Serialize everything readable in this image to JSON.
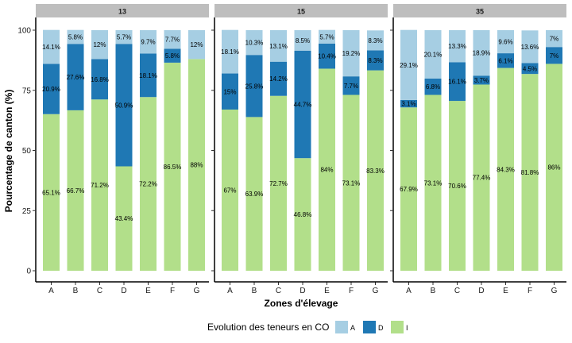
{
  "chart_data": {
    "type": "bar",
    "stacked": true,
    "percent": true,
    "xlabel": "Zones d'élevage",
    "ylabel": "Pourcentage de canton (%)",
    "ylim": [
      0,
      100
    ],
    "yticks": [
      0,
      25,
      50,
      75,
      100
    ],
    "grid": false,
    "legend": {
      "title": "Evolution des teneurs en CO",
      "position": "bottom",
      "entries": [
        {
          "key": "A",
          "label": "A",
          "color": "#a6cee3"
        },
        {
          "key": "D",
          "label": "D",
          "color": "#1f78b4"
        },
        {
          "key": "I",
          "label": "I",
          "color": "#b2df8a"
        }
      ]
    },
    "colors": {
      "A": "#a6cee3",
      "D": "#1f78b4",
      "I": "#b2df8a"
    },
    "categories": [
      "A",
      "B",
      "C",
      "D",
      "E",
      "F",
      "G"
    ],
    "facets": [
      {
        "strip": "13",
        "series": [
          {
            "name": "I",
            "values": [
              65.1,
              66.7,
              71.2,
              43.4,
              72.2,
              86.5,
              88
            ],
            "labels": [
              "65.1%",
              "66.7%",
              "71.2%",
              "43.4%",
              "72.2%",
              "86.5%",
              "88%"
            ]
          },
          {
            "name": "D",
            "values": [
              20.9,
              27.6,
              16.8,
              50.9,
              18.1,
              5.8,
              0
            ],
            "labels": [
              "20.9%",
              "27.6%",
              "16.8%",
              "50.9%",
              "18.1%",
              "5.8%",
              ""
            ]
          },
          {
            "name": "A",
            "values": [
              14.1,
              5.8,
              12,
              5.7,
              9.7,
              7.7,
              12
            ],
            "labels": [
              "14.1%",
              "5.8%",
              "12%",
              "5.7%",
              "9.7%",
              "7.7%",
              "12%"
            ]
          }
        ]
      },
      {
        "strip": "15",
        "series": [
          {
            "name": "I",
            "values": [
              67,
              63.9,
              72.7,
              46.8,
              84,
              73.1,
              83.3
            ],
            "labels": [
              "67%",
              "63.9%",
              "72.7%",
              "46.8%",
              "84%",
              "73.1%",
              "83.3%"
            ]
          },
          {
            "name": "D",
            "values": [
              15,
              25.8,
              14.2,
              44.7,
              10.4,
              7.7,
              8.3
            ],
            "labels": [
              "15%",
              "25.8%",
              "14.2%",
              "44.7%",
              "10.4%",
              "7.7%",
              "8.3%"
            ]
          },
          {
            "name": "A",
            "values": [
              18.1,
              10.3,
              13.1,
              8.5,
              5.7,
              19.2,
              8.3
            ],
            "labels": [
              "18.1%",
              "10.3%",
              "13.1%",
              "8.5%",
              "5.7%",
              "19.2%",
              "8.3%"
            ]
          }
        ]
      },
      {
        "strip": "35",
        "series": [
          {
            "name": "I",
            "values": [
              67.9,
              73.1,
              70.6,
              77.4,
              84.3,
              81.8,
              86
            ],
            "labels": [
              "67.9%",
              "73.1%",
              "70.6%",
              "77.4%",
              "84.3%",
              "81.8%",
              "86%"
            ]
          },
          {
            "name": "D",
            "values": [
              3.1,
              6.8,
              16.1,
              3.7,
              6.1,
              4.5,
              7
            ],
            "labels": [
              "3.1%",
              "6.8%",
              "16.1%",
              "3.7%",
              "6.1%",
              "4.5%",
              "7%"
            ]
          },
          {
            "name": "A",
            "values": [
              29.1,
              20.1,
              13.3,
              18.9,
              9.6,
              13.6,
              7
            ],
            "labels": [
              "29.1%",
              "20.1%",
              "13.3%",
              "18.9%",
              "9.6%",
              "13.6%",
              "7%"
            ]
          }
        ]
      }
    ]
  }
}
